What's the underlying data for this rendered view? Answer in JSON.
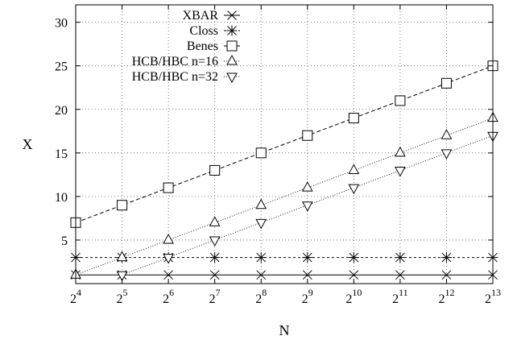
{
  "chart_data": {
    "type": "line",
    "title": "",
    "xlabel": "N",
    "ylabel": "X",
    "x_scale": "log2",
    "x": [
      16,
      32,
      64,
      128,
      256,
      512,
      1024,
      2048,
      4096,
      8192
    ],
    "x_tick_labels": [
      {
        "base": "2",
        "exp": "4"
      },
      {
        "base": "2",
        "exp": "5"
      },
      {
        "base": "2",
        "exp": "6"
      },
      {
        "base": "2",
        "exp": "7"
      },
      {
        "base": "2",
        "exp": "8"
      },
      {
        "base": "2",
        "exp": "9"
      },
      {
        "base": "2",
        "exp": "10"
      },
      {
        "base": "2",
        "exp": "11"
      },
      {
        "base": "2",
        "exp": "12"
      },
      {
        "base": "2",
        "exp": "13"
      }
    ],
    "y_ticks": [
      "5",
      "10",
      "15",
      "20",
      "25",
      "30"
    ],
    "xlim": [
      16,
      8192
    ],
    "ylim": [
      0,
      32
    ],
    "grid": true,
    "legend_position": "top-left",
    "series": [
      {
        "name": "XBAR",
        "marker": "x",
        "dash": "solid",
        "x": [
          16,
          32,
          64,
          128,
          256,
          512,
          1024,
          2048,
          4096,
          8192
        ],
        "values": [
          1,
          1,
          1,
          1,
          1,
          1,
          1,
          1,
          1,
          1
        ]
      },
      {
        "name": "Closs",
        "marker": "star",
        "dash": "dashed-short",
        "x": [
          16,
          32,
          64,
          128,
          256,
          512,
          1024,
          2048,
          4096,
          8192
        ],
        "values": [
          3,
          3,
          3,
          3,
          3,
          3,
          3,
          3,
          3,
          3
        ]
      },
      {
        "name": "Benes",
        "marker": "square",
        "dash": "dashed",
        "x": [
          16,
          32,
          64,
          128,
          256,
          512,
          1024,
          2048,
          4096,
          8192
        ],
        "values": [
          7,
          9,
          11,
          13,
          15,
          17,
          19,
          21,
          23,
          25
        ]
      },
      {
        "name": "HCB/HBC n=16",
        "marker": "triangle-up",
        "dash": "dotted",
        "x": [
          16,
          32,
          64,
          128,
          256,
          512,
          1024,
          2048,
          4096,
          8192
        ],
        "values": [
          1,
          3,
          5,
          7,
          9,
          11,
          13,
          15,
          17,
          19
        ]
      },
      {
        "name": "HCB/HBC n=32",
        "marker": "triangle-down",
        "dash": "dotted",
        "x": [
          32,
          64,
          128,
          256,
          512,
          1024,
          2048,
          4096,
          8192
        ],
        "values": [
          1,
          3,
          5,
          7,
          9,
          11,
          13,
          15,
          17
        ]
      }
    ]
  }
}
